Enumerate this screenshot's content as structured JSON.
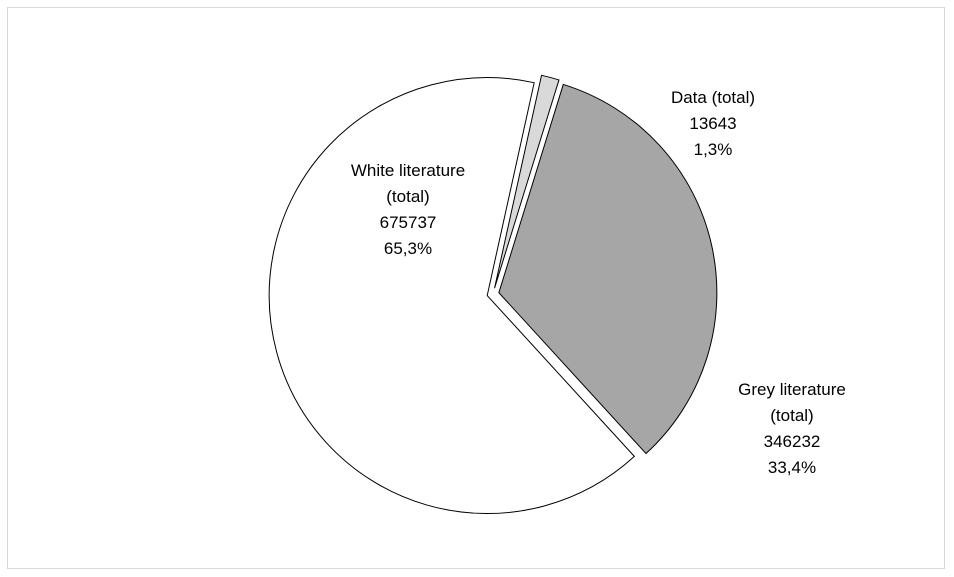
{
  "chart_data": {
    "type": "pie",
    "title": "",
    "slices": [
      {
        "label_lines": [
          "Grey literature",
          "(total)"
        ],
        "value": 346232,
        "percent_label": "33,4%",
        "percent": 33.4,
        "color": "#a6a6a6"
      },
      {
        "label_lines": [
          "White literature",
          "(total)"
        ],
        "value": 675737,
        "percent_label": "65,3%",
        "percent": 65.3,
        "color": "#ffffff"
      },
      {
        "label_lines": [
          "Data (total)"
        ],
        "value": 13643,
        "percent_label": "1,3%",
        "percent": 1.3,
        "color": "#d9d9d9"
      }
    ],
    "exploded": true,
    "legend": "none",
    "data_labels": "outside/inside with category, value, percent"
  }
}
